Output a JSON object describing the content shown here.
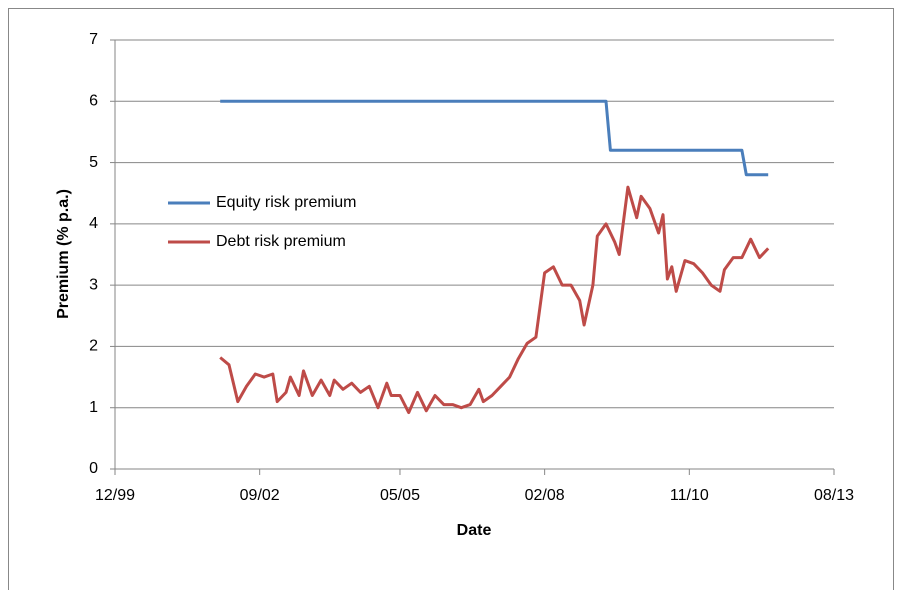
{
  "chart_data": {
    "type": "line",
    "x_label": "Date",
    "y_label": "Premium (% p.a.)",
    "xlim": [
      "1999-12",
      "2013-08"
    ],
    "xticks": [
      {
        "value": "1999-12",
        "label": "12/99"
      },
      {
        "value": "2002-09",
        "label": "09/02"
      },
      {
        "value": "2005-05",
        "label": "05/05"
      },
      {
        "value": "2008-02",
        "label": "02/08"
      },
      {
        "value": "2010-11",
        "label": "11/10"
      },
      {
        "value": "2013-08",
        "label": "08/13"
      }
    ],
    "ylim": [
      0,
      7
    ],
    "yticks": [
      0,
      1,
      2,
      3,
      4,
      5,
      6,
      7
    ],
    "grid": true,
    "series": [
      {
        "name": "Equity risk premium",
        "color": "#4a7ebb",
        "x": [
          "2001-12",
          "2009-04",
          "2009-05",
          "2011-11",
          "2011-12",
          "2012-05"
        ],
        "values": [
          6,
          6,
          5.2,
          5.2,
          4.8,
          4.8
        ]
      },
      {
        "name": "Debt risk premium",
        "color": "#be4b48",
        "x": [
          "2001-12",
          "2002-02",
          "2002-04",
          "2002-06",
          "2002-08",
          "2002-10",
          "2002-12",
          "2003-01",
          "2003-03",
          "2003-04",
          "2003-06",
          "2003-07",
          "2003-09",
          "2003-11",
          "2004-01",
          "2004-02",
          "2004-04",
          "2004-06",
          "2004-08",
          "2004-10",
          "2004-12",
          "2005-02",
          "2005-03",
          "2005-05",
          "2005-07",
          "2005-09",
          "2005-11",
          "2006-01",
          "2006-03",
          "2006-05",
          "2006-07",
          "2006-09",
          "2006-11",
          "2006-12",
          "2007-02",
          "2007-04",
          "2007-06",
          "2007-08",
          "2007-10",
          "2007-12",
          "2008-02",
          "2008-04",
          "2008-06",
          "2008-08",
          "2008-10",
          "2008-11",
          "2009-01",
          "2009-02",
          "2009-04",
          "2009-06",
          "2009-07",
          "2009-09",
          "2009-11",
          "2009-12",
          "2010-02",
          "2010-04",
          "2010-05",
          "2010-06",
          "2010-07",
          "2010-08",
          "2010-10",
          "2010-12",
          "2011-02",
          "2011-04",
          "2011-06",
          "2011-07",
          "2011-09",
          "2011-11",
          "2012-01",
          "2012-03",
          "2012-05"
        ],
        "values": [
          1.82,
          1.7,
          1.1,
          1.35,
          1.55,
          1.5,
          1.55,
          1.1,
          1.25,
          1.5,
          1.2,
          1.6,
          1.2,
          1.45,
          1.2,
          1.45,
          1.3,
          1.4,
          1.25,
          1.35,
          1.0,
          1.4,
          1.2,
          1.2,
          0.92,
          1.25,
          0.95,
          1.2,
          1.05,
          1.05,
          1.0,
          1.05,
          1.3,
          1.1,
          1.2,
          1.35,
          1.5,
          1.8,
          2.05,
          2.15,
          3.2,
          3.3,
          3.0,
          3.0,
          2.75,
          2.35,
          3.0,
          3.8,
          4.0,
          3.7,
          3.5,
          4.6,
          4.1,
          4.45,
          4.25,
          3.85,
          4.15,
          3.1,
          3.3,
          2.9,
          3.4,
          3.35,
          3.2,
          3.0,
          2.9,
          3.25,
          3.45,
          3.45,
          3.75,
          3.45,
          3.6
        ]
      }
    ]
  }
}
